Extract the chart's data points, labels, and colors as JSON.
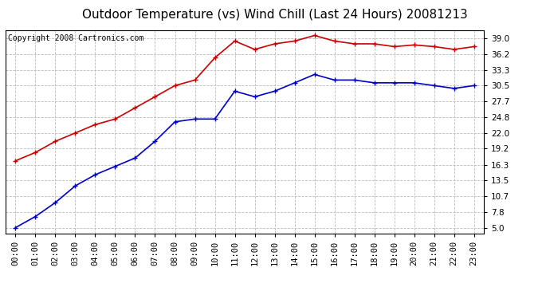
{
  "title": "Outdoor Temperature (vs) Wind Chill (Last 24 Hours) 20081213",
  "copyright": "Copyright 2008 Cartronics.com",
  "x_labels": [
    "00:00",
    "01:00",
    "02:00",
    "03:00",
    "04:00",
    "05:00",
    "06:00",
    "07:00",
    "08:00",
    "09:00",
    "10:00",
    "11:00",
    "12:00",
    "13:00",
    "14:00",
    "15:00",
    "16:00",
    "17:00",
    "18:00",
    "19:00",
    "20:00",
    "21:00",
    "22:00",
    "23:00"
  ],
  "y_ticks": [
    5.0,
    7.8,
    10.7,
    13.5,
    16.3,
    19.2,
    22.0,
    24.8,
    27.7,
    30.5,
    33.3,
    36.2,
    39.0
  ],
  "ylim": [
    4.0,
    40.5
  ],
  "temp_red": [
    17.0,
    18.5,
    20.5,
    22.0,
    23.5,
    24.5,
    26.5,
    28.5,
    30.5,
    31.5,
    35.5,
    38.5,
    37.0,
    38.0,
    38.5,
    39.5,
    38.5,
    38.0,
    38.0,
    37.5,
    37.8,
    37.5,
    37.0,
    37.5
  ],
  "wind_chill_blue": [
    5.0,
    7.0,
    9.5,
    12.5,
    14.5,
    16.0,
    17.5,
    20.5,
    24.0,
    24.5,
    24.5,
    29.5,
    28.5,
    29.5,
    31.0,
    32.5,
    31.5,
    31.5,
    31.0,
    31.0,
    31.0,
    30.5,
    30.0,
    30.5
  ],
  "red_color": "#cc0000",
  "blue_color": "#0000cc",
  "bg_color": "#ffffff",
  "grid_color": "#bbbbbb",
  "marker": "+",
  "marker_size": 5,
  "line_width": 1.2,
  "title_fontsize": 11,
  "tick_fontsize": 7.5,
  "copyright_fontsize": 7
}
